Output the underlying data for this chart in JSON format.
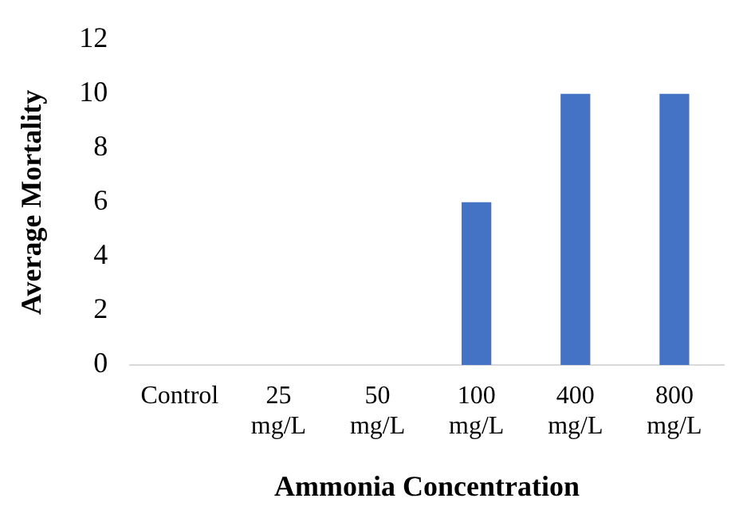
{
  "chart_data": {
    "type": "bar",
    "xlabel": "Ammonia Concentration",
    "ylabel": "Average Mortality",
    "categories": [
      "Control",
      "25 mg/L",
      "50 mg/L",
      "100 mg/L",
      "400 mg/L",
      "800 mg/L"
    ],
    "values": [
      0,
      0,
      0,
      6,
      10,
      10
    ],
    "color": "#4472c4",
    "ylim": [
      0,
      12
    ],
    "yticks": [
      0,
      2,
      4,
      6,
      8,
      10,
      12
    ],
    "grid": false,
    "legend": false
  }
}
